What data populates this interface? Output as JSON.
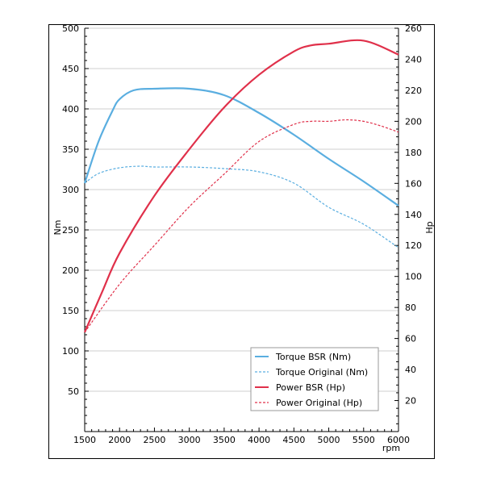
{
  "chart_data": {
    "type": "line",
    "xlabel": "rpm",
    "ylabel_left": "Nm",
    "ylabel_right": "Hp",
    "xlim": [
      1500,
      6000
    ],
    "ylim_left": [
      0,
      500
    ],
    "ylim_right": [
      0,
      260
    ],
    "x_ticks": [
      1500,
      2000,
      2500,
      3000,
      3500,
      4000,
      4500,
      5000,
      5500,
      6000
    ],
    "y_left_ticks": [
      50,
      100,
      150,
      200,
      250,
      300,
      350,
      400,
      450,
      500
    ],
    "y_right_ticks": [
      20,
      40,
      60,
      80,
      100,
      120,
      140,
      160,
      180,
      200,
      220,
      240,
      260
    ],
    "grid": true,
    "legend_position": "bottom-right",
    "series": [
      {
        "name": "Torque BSR (Nm)",
        "axis": "left",
        "color": "#5aaee0",
        "dash": "solid",
        "x": [
          1500,
          1700,
          1900,
          2000,
          2200,
          2500,
          3000,
          3500,
          4000,
          4500,
          5000,
          5500,
          6000
        ],
        "y": [
          308,
          360,
          398,
          412,
          423,
          425,
          425,
          417,
          395,
          368,
          338,
          310,
          280
        ]
      },
      {
        "name": "Torque Original (Nm)",
        "axis": "left",
        "color": "#5aaee0",
        "dash": "dashed",
        "x": [
          1500,
          1700,
          2000,
          2300,
          2500,
          3000,
          3500,
          4000,
          4500,
          5000,
          5500,
          6000
        ],
        "y": [
          308,
          320,
          327,
          329,
          328,
          328,
          326,
          322,
          308,
          278,
          257,
          228
        ]
      },
      {
        "name": "Power BSR (Hp)",
        "axis": "right",
        "color": "#e0304a",
        "dash": "solid",
        "x": [
          1500,
          1750,
          2000,
          2500,
          3000,
          3500,
          4000,
          4500,
          4750,
          5000,
          5500,
          6000
        ],
        "y": [
          64,
          90,
          115,
          152,
          182,
          209,
          230,
          245,
          249,
          250,
          252,
          243
        ]
      },
      {
        "name": "Power Original (Hp)",
        "axis": "right",
        "color": "#e0304a",
        "dash": "dashed",
        "x": [
          1500,
          2000,
          2500,
          3000,
          3500,
          4000,
          4500,
          4750,
          5000,
          5250,
          5500,
          5750,
          6000
        ],
        "y": [
          64,
          95,
          120,
          145,
          166,
          187,
          198,
          200,
          200,
          201,
          200,
          197,
          193
        ]
      }
    ]
  }
}
